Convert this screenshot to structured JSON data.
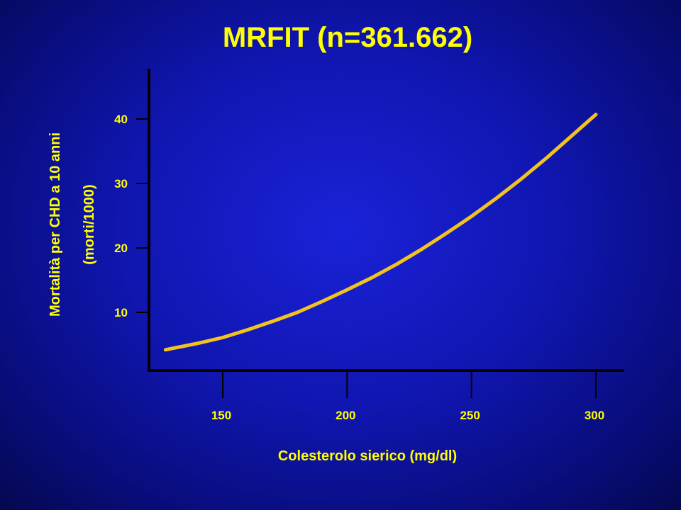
{
  "colors": {
    "text": "#ffff00",
    "curve": "#f2c31f",
    "axis": "#000000"
  },
  "chart_data": {
    "type": "line",
    "title": "MRFIT (n=361.662)",
    "xlabel": "Colesterolo sierico (mg/dl)",
    "ylabel_lines": [
      "Mortalità  per CHD  a  10  anni",
      "(morti/1000)"
    ],
    "xlim": [
      120,
      310
    ],
    "ylim": [
      0,
      47
    ],
    "xticks": [
      150,
      200,
      250,
      300
    ],
    "yticks": [
      10,
      20,
      30,
      40
    ],
    "grid": false,
    "series": [
      {
        "x": [
          127,
          140,
          150,
          160,
          170,
          180,
          190,
          200,
          210,
          220,
          230,
          240,
          250,
          260,
          270,
          280,
          290,
          300
        ],
        "y": [
          4.2,
          5.2,
          6.1,
          7.3,
          8.6,
          10.0,
          11.7,
          13.5,
          15.4,
          17.5,
          19.8,
          22.3,
          24.9,
          27.7,
          30.7,
          33.9,
          37.3,
          40.7
        ]
      }
    ]
  }
}
